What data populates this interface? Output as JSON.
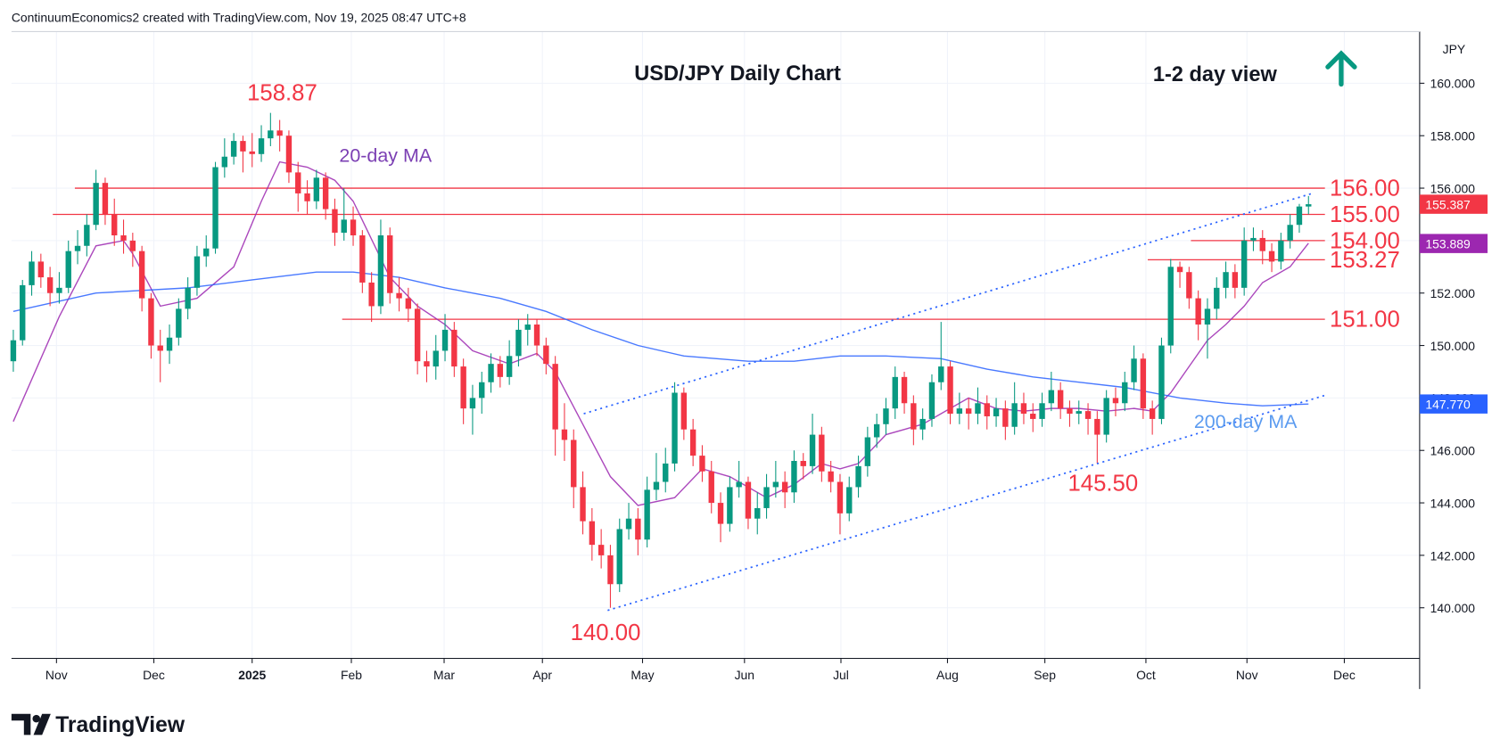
{
  "chart_data": {
    "type": "candlestick",
    "header": "ContinuumEconomics2 created with TradingView.com, Nov 19, 2025 08:47 UTC+8",
    "title": "USD/JPY Daily Chart",
    "subtitle": "1-2 day view",
    "y_axis_unit": "JPY",
    "brand": "TradingView",
    "up_color": "#089981",
    "down_color": "#f23645",
    "grid": true,
    "ylim": [
      138.07,
      161.97
    ],
    "yticks": [
      {
        "value": 140,
        "label": "140.000"
      },
      {
        "value": 142,
        "label": "142.000"
      },
      {
        "value": 144,
        "label": "144.000"
      },
      {
        "value": 146,
        "label": "146.000"
      },
      {
        "value": 148,
        "label": "148.000"
      },
      {
        "value": 150,
        "label": "150.000"
      },
      {
        "value": 152,
        "label": "152.000"
      },
      {
        "value": 154,
        "label": "154.000"
      },
      {
        "value": 156,
        "label": "156.000"
      },
      {
        "value": 158,
        "label": "158.000"
      },
      {
        "value": 160,
        "label": "160.000"
      }
    ],
    "xlim": [
      -0.2,
      153.1
    ],
    "xticks": [
      {
        "value": 4.7,
        "label": "Nov"
      },
      {
        "value": 15.3,
        "label": "Dec"
      },
      {
        "value": 26.0,
        "label": "2025"
      },
      {
        "value": 36.8,
        "label": "Feb"
      },
      {
        "value": 46.9,
        "label": "Mar"
      },
      {
        "value": 57.6,
        "label": "Apr"
      },
      {
        "value": 68.5,
        "label": "May"
      },
      {
        "value": 79.6,
        "label": "Jun"
      },
      {
        "value": 90.1,
        "label": "Jul"
      },
      {
        "value": 101.7,
        "label": "Aug"
      },
      {
        "value": 112.3,
        "label": "Sep"
      },
      {
        "value": 123.3,
        "label": "Oct"
      },
      {
        "value": 134.3,
        "label": "Nov"
      },
      {
        "value": 144.9,
        "label": "Dec"
      }
    ],
    "ohlc": [
      [
        149.4,
        150.6,
        149.0,
        150.2
      ],
      [
        150.2,
        152.5,
        150.0,
        152.3
      ],
      [
        152.3,
        153.6,
        151.9,
        153.2
      ],
      [
        153.2,
        153.5,
        152.2,
        152.6
      ],
      [
        152.6,
        153.0,
        151.5,
        152.0
      ],
      [
        152.0,
        152.8,
        151.6,
        152.2
      ],
      [
        152.2,
        154.0,
        152.0,
        153.6
      ],
      [
        153.6,
        154.4,
        153.1,
        153.8
      ],
      [
        153.8,
        155.0,
        153.4,
        154.6
      ],
      [
        154.6,
        156.7,
        154.4,
        156.2
      ],
      [
        156.2,
        156.4,
        154.6,
        155.0
      ],
      [
        155.0,
        155.6,
        153.8,
        154.2
      ],
      [
        154.2,
        154.8,
        153.5,
        154.0
      ],
      [
        154.0,
        154.3,
        153.0,
        153.6
      ],
      [
        153.6,
        153.8,
        151.3,
        151.8
      ],
      [
        151.8,
        152.0,
        149.5,
        150.0
      ],
      [
        150.0,
        150.6,
        148.6,
        149.8
      ],
      [
        149.8,
        150.8,
        149.3,
        150.3
      ],
      [
        150.3,
        151.8,
        150.0,
        151.4
      ],
      [
        151.4,
        152.6,
        151.0,
        152.2
      ],
      [
        152.2,
        153.8,
        151.9,
        153.4
      ],
      [
        153.4,
        154.2,
        153.0,
        153.7
      ],
      [
        153.7,
        157.0,
        153.5,
        156.8
      ],
      [
        156.8,
        157.9,
        156.4,
        157.2
      ],
      [
        157.2,
        158.1,
        156.9,
        157.8
      ],
      [
        157.8,
        158.0,
        156.6,
        157.4
      ],
      [
        157.4,
        158.1,
        156.8,
        157.3
      ],
      [
        157.3,
        158.4,
        157.0,
        157.9
      ],
      [
        157.9,
        158.87,
        157.6,
        158.2
      ],
      [
        158.2,
        158.6,
        157.4,
        158.0
      ],
      [
        158.0,
        158.2,
        156.2,
        156.6
      ],
      [
        156.6,
        157.0,
        155.1,
        155.8
      ],
      [
        155.8,
        156.3,
        155.0,
        155.5
      ],
      [
        155.5,
        156.7,
        155.2,
        156.4
      ],
      [
        156.4,
        156.6,
        154.8,
        155.2
      ],
      [
        155.2,
        155.6,
        153.8,
        154.3
      ],
      [
        154.3,
        156.0,
        154.0,
        154.8
      ],
      [
        154.8,
        155.3,
        153.8,
        154.2
      ],
      [
        154.2,
        154.4,
        152.0,
        152.4
      ],
      [
        152.4,
        152.8,
        150.9,
        151.5
      ],
      [
        151.5,
        154.8,
        151.2,
        154.2
      ],
      [
        154.2,
        154.5,
        151.6,
        152.0
      ],
      [
        152.0,
        152.6,
        151.3,
        151.8
      ],
      [
        151.8,
        152.2,
        150.9,
        151.4
      ],
      [
        151.4,
        151.6,
        148.9,
        149.4
      ],
      [
        149.4,
        149.8,
        148.6,
        149.2
      ],
      [
        149.2,
        150.4,
        148.7,
        149.8
      ],
      [
        149.8,
        151.2,
        149.4,
        150.6
      ],
      [
        150.6,
        150.9,
        148.8,
        149.2
      ],
      [
        149.2,
        149.5,
        147.0,
        147.6
      ],
      [
        147.6,
        148.5,
        146.6,
        148.0
      ],
      [
        148.0,
        149.0,
        147.4,
        148.6
      ],
      [
        148.6,
        149.7,
        148.2,
        149.3
      ],
      [
        149.3,
        149.6,
        148.4,
        148.8
      ],
      [
        148.8,
        150.2,
        148.5,
        149.6
      ],
      [
        149.6,
        151.0,
        149.2,
        150.6
      ],
      [
        150.6,
        151.2,
        150.0,
        150.8
      ],
      [
        150.8,
        151.0,
        149.6,
        150.0
      ],
      [
        150.0,
        150.3,
        148.9,
        149.3
      ],
      [
        149.3,
        149.6,
        145.8,
        146.8
      ],
      [
        146.8,
        147.8,
        145.6,
        146.4
      ],
      [
        146.4,
        146.8,
        143.8,
        144.6
      ],
      [
        144.6,
        145.2,
        142.8,
        143.3
      ],
      [
        143.3,
        143.8,
        141.8,
        142.4
      ],
      [
        142.4,
        143.0,
        141.5,
        142.0
      ],
      [
        142.0,
        142.4,
        140.0,
        140.9
      ],
      [
        140.9,
        143.4,
        140.6,
        143.0
      ],
      [
        143.0,
        144.0,
        142.6,
        143.4
      ],
      [
        143.4,
        143.8,
        142.0,
        142.6
      ],
      [
        142.6,
        145.0,
        142.3,
        144.5
      ],
      [
        144.5,
        145.9,
        144.1,
        144.8
      ],
      [
        144.8,
        146.1,
        144.4,
        145.5
      ],
      [
        145.5,
        148.6,
        145.2,
        148.2
      ],
      [
        148.2,
        148.4,
        146.4,
        146.8
      ],
      [
        146.8,
        147.2,
        145.4,
        145.8
      ],
      [
        145.8,
        146.2,
        144.8,
        145.2
      ],
      [
        145.2,
        145.6,
        143.6,
        144.0
      ],
      [
        144.0,
        144.4,
        142.5,
        143.2
      ],
      [
        143.2,
        145.0,
        142.9,
        144.6
      ],
      [
        144.6,
        145.6,
        144.2,
        144.8
      ],
      [
        144.8,
        145.0,
        143.0,
        143.4
      ],
      [
        143.4,
        144.4,
        142.8,
        143.8
      ],
      [
        143.8,
        145.1,
        143.4,
        144.6
      ],
      [
        144.6,
        145.6,
        144.2,
        144.8
      ],
      [
        144.8,
        145.2,
        143.8,
        144.4
      ],
      [
        144.4,
        146.0,
        144.0,
        145.6
      ],
      [
        145.6,
        145.9,
        144.9,
        145.4
      ],
      [
        145.4,
        147.4,
        145.1,
        146.6
      ],
      [
        146.6,
        146.9,
        144.8,
        145.2
      ],
      [
        145.2,
        145.6,
        144.4,
        144.8
      ],
      [
        144.8,
        145.1,
        142.8,
        143.6
      ],
      [
        143.6,
        145.0,
        143.3,
        144.6
      ],
      [
        144.6,
        145.8,
        144.2,
        145.4
      ],
      [
        145.4,
        146.9,
        145.0,
        146.5
      ],
      [
        146.5,
        147.4,
        146.1,
        147.0
      ],
      [
        147.0,
        148.0,
        146.6,
        147.6
      ],
      [
        147.6,
        149.2,
        147.2,
        148.8
      ],
      [
        148.8,
        149.0,
        147.4,
        147.8
      ],
      [
        147.8,
        148.1,
        146.2,
        146.8
      ],
      [
        146.8,
        147.6,
        146.4,
        147.2
      ],
      [
        147.2,
        148.9,
        146.9,
        148.6
      ],
      [
        148.6,
        150.9,
        148.3,
        149.2
      ],
      [
        149.2,
        149.4,
        147.0,
        147.4
      ],
      [
        147.4,
        148.2,
        147.0,
        147.6
      ],
      [
        147.6,
        148.0,
        146.8,
        147.4
      ],
      [
        147.4,
        148.4,
        147.0,
        147.8
      ],
      [
        147.8,
        148.1,
        146.8,
        147.3
      ],
      [
        147.3,
        148.0,
        146.9,
        147.6
      ],
      [
        147.6,
        147.9,
        146.4,
        146.9
      ],
      [
        146.9,
        148.6,
        146.6,
        147.8
      ],
      [
        147.8,
        148.2,
        147.0,
        147.4
      ],
      [
        147.4,
        147.8,
        146.7,
        147.2
      ],
      [
        147.2,
        148.2,
        146.9,
        147.8
      ],
      [
        147.8,
        149.0,
        147.5,
        148.3
      ],
      [
        148.3,
        148.6,
        147.2,
        147.6
      ],
      [
        147.6,
        147.9,
        146.9,
        147.4
      ],
      [
        147.4,
        147.9,
        147.0,
        147.5
      ],
      [
        147.5,
        147.8,
        146.6,
        147.2
      ],
      [
        147.2,
        147.5,
        145.5,
        146.6
      ],
      [
        146.6,
        148.3,
        146.3,
        148.0
      ],
      [
        148.0,
        148.4,
        147.3,
        147.8
      ],
      [
        147.8,
        149.0,
        147.5,
        148.6
      ],
      [
        148.6,
        150.0,
        148.3,
        149.5
      ],
      [
        149.5,
        149.7,
        147.2,
        147.6
      ],
      [
        147.6,
        147.9,
        146.6,
        147.2
      ],
      [
        147.2,
        150.3,
        147.0,
        150.0
      ],
      [
        150.0,
        153.3,
        149.7,
        153.0
      ],
      [
        153.0,
        153.2,
        152.2,
        152.8
      ],
      [
        152.8,
        153.0,
        151.4,
        151.8
      ],
      [
        151.8,
        152.1,
        150.2,
        150.8
      ],
      [
        150.8,
        151.8,
        149.5,
        151.4
      ],
      [
        151.4,
        152.6,
        151.0,
        152.2
      ],
      [
        152.2,
        153.2,
        151.8,
        152.8
      ],
      [
        152.8,
        153.1,
        151.8,
        152.2
      ],
      [
        152.2,
        154.5,
        151.9,
        154.0
      ],
      [
        154.0,
        154.5,
        153.6,
        154.1
      ],
      [
        154.1,
        154.4,
        153.1,
        153.6
      ],
      [
        153.6,
        153.9,
        152.8,
        153.2
      ],
      [
        153.2,
        154.3,
        152.9,
        154.0
      ],
      [
        154.0,
        155.0,
        153.7,
        154.6
      ],
      [
        154.6,
        155.4,
        154.3,
        155.3
      ],
      [
        155.3,
        155.7,
        155.0,
        155.387
      ]
    ],
    "series": [
      {
        "name": "20-day MA",
        "color": "#9c27b0",
        "x": [
          0,
          5,
          9,
          12,
          13,
          16,
          20,
          24,
          27,
          29,
          32,
          35,
          37,
          41,
          44,
          47,
          50,
          54,
          57,
          59,
          62,
          65,
          68,
          72,
          75,
          78,
          82,
          85,
          88,
          90,
          92,
          95,
          99,
          102,
          104,
          107,
          110,
          113,
          116,
          119,
          122,
          124,
          126,
          128,
          130,
          132,
          134,
          136,
          139,
          141
        ],
        "values": [
          147.1,
          151.1,
          153.8,
          154.0,
          153.5,
          151.5,
          151.8,
          153.0,
          155.5,
          157.0,
          156.8,
          156.3,
          155.5,
          152.6,
          151.5,
          150.8,
          149.8,
          149.3,
          149.7,
          149.0,
          147.0,
          145.0,
          143.9,
          144.2,
          145.3,
          145.0,
          144.2,
          144.7,
          145.5,
          145.3,
          145.5,
          146.6,
          147.0,
          147.6,
          148.0,
          147.6,
          147.5,
          147.6,
          147.6,
          147.5,
          147.6,
          147.5,
          148.2,
          149.2,
          150.2,
          150.8,
          151.5,
          152.4,
          153.0,
          153.9
        ]
      },
      {
        "name": "200-day MA",
        "color": "#2962ff",
        "x": [
          0,
          9,
          19,
          26,
          33,
          37,
          42,
          47,
          53,
          58,
          63,
          68,
          73,
          80,
          85,
          90,
          95,
          101,
          106,
          111,
          116,
          121,
          127,
          132,
          136,
          141
        ],
        "values": [
          151.3,
          152.0,
          152.2,
          152.5,
          152.8,
          152.8,
          152.6,
          152.2,
          151.8,
          151.3,
          150.6,
          150.0,
          149.6,
          149.4,
          149.4,
          149.6,
          149.6,
          149.5,
          149.1,
          148.8,
          148.6,
          148.4,
          148.0,
          147.8,
          147.7,
          147.77
        ]
      }
    ],
    "levels": [
      {
        "value": 156,
        "label": "156.00",
        "x_start": 6.7
      },
      {
        "value": 155,
        "label": "155.00",
        "x_start": 4.3
      },
      {
        "value": 154,
        "label": "154.00",
        "x_start": 128.2
      },
      {
        "value": 153.27,
        "label": "153.27",
        "x_start": 123.5
      },
      {
        "value": 151,
        "label": "151.00",
        "x_start": 35.8
      }
    ],
    "trendlines": [
      {
        "x": [
          62.1,
          141.4
        ],
        "values": [
          147.4,
          155.8
        ]
      },
      {
        "x": [
          64.7,
          142.8
        ],
        "values": [
          139.9,
          148.1
        ]
      }
    ],
    "price_labels": [
      {
        "value": 155.387,
        "color": "#f23645"
      },
      {
        "value": 153.889,
        "color": "#9c27b0"
      },
      {
        "value": 147.77,
        "label": "147.770",
        "color": "#2962ff"
      }
    ],
    "annotations": [
      "158.87",
      "140.00",
      "145.50"
    ]
  }
}
